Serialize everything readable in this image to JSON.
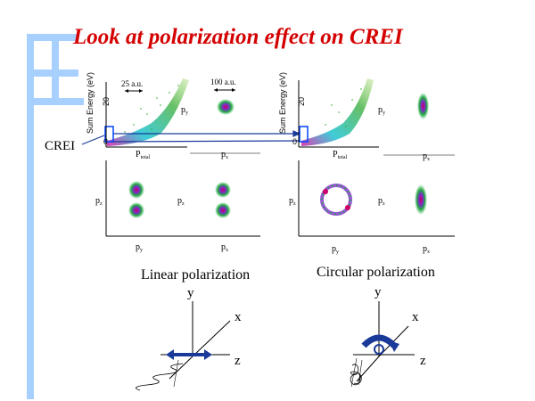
{
  "slide": {
    "title": "Look at polarization effect on CREI",
    "crei_label": "CREI",
    "energy_axis": {
      "label": "Sum Energy (eV)",
      "tick_zero": "0",
      "tick_20": "20"
    },
    "scale_labels": {
      "left": "25 a.u.",
      "right": "100 a.u."
    },
    "linear_panel": {
      "heading": "Linear polarization",
      "cells": [
        {
          "label": "P_total",
          "sub": "total"
        },
        {
          "label": "p_y",
          "sub": "y"
        },
        {
          "label": "p_x",
          "sub": "x"
        },
        {
          "label": "p_z",
          "sub": "z"
        },
        {
          "label": "p_z",
          "sub": "z"
        },
        {
          "label": "p_y",
          "sub": "y"
        },
        {
          "label": "p_x",
          "sub": "x"
        }
      ],
      "axes": {
        "y": "y",
        "x": "x",
        "z": "z"
      }
    },
    "circular_panel": {
      "heading": "Circular polarization",
      "cells": [
        {
          "label": "P_total",
          "sub": "total"
        },
        {
          "label": "p_y",
          "sub": "y"
        },
        {
          "label": "p_x",
          "sub": "x"
        },
        {
          "label": "p_z",
          "sub": "z"
        },
        {
          "label": "p_z",
          "sub": "z"
        },
        {
          "label": "p_y",
          "sub": "y"
        },
        {
          "label": "p_x",
          "sub": "x"
        }
      ],
      "axes": {
        "y": "y",
        "x": "x",
        "z": "z"
      }
    },
    "colors": {
      "title": "#d40000",
      "frame": "#99ccff",
      "scatter_green": "#33aa33",
      "scatter_magenta": "#cc0099",
      "scatter_cyan": "#00bbcc",
      "box": "#0044ff"
    }
  }
}
